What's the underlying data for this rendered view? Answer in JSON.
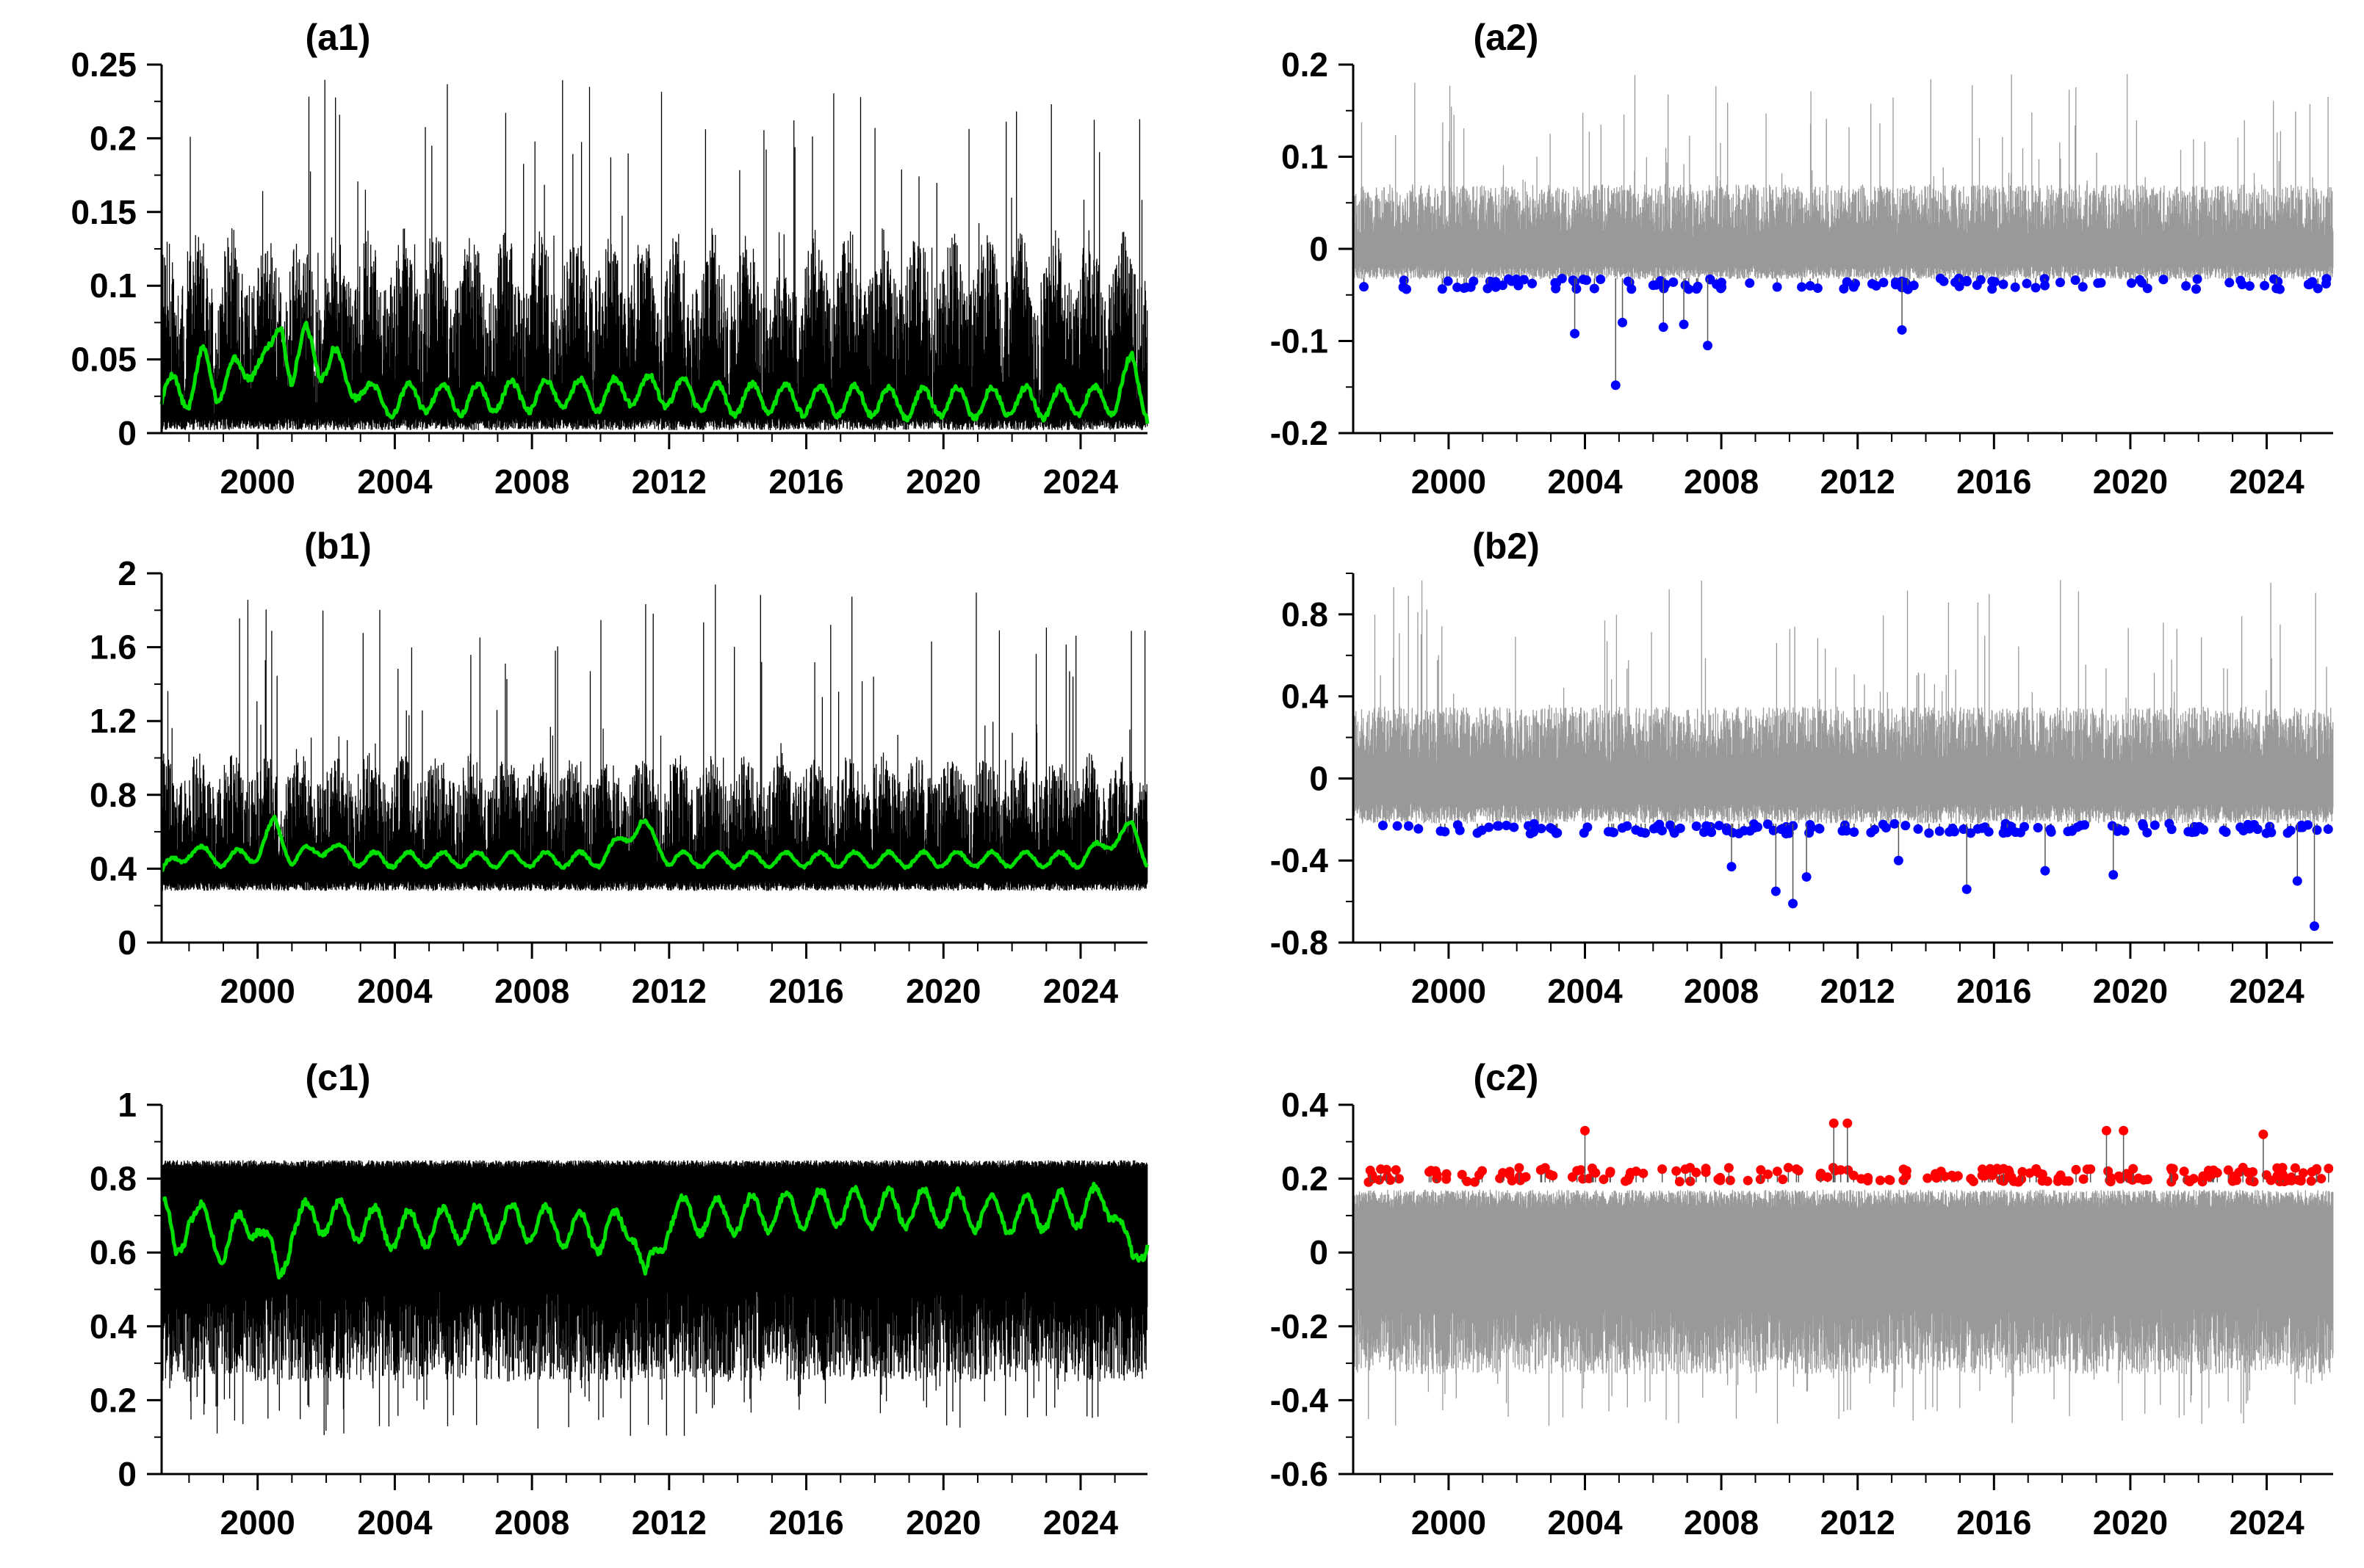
{
  "figure": {
    "background": "#ffffff",
    "colors": {
      "raw": "#000000",
      "smooth": "#00e000",
      "anomaly": "#999999",
      "low_extreme": "#0000ff",
      "high_extreme": "#ff0000"
    }
  },
  "chart_data": [
    {
      "id": "a1",
      "type": "line",
      "title": "(a1)",
      "xlabel": "",
      "ylabel": "",
      "xlim": [
        1997.2,
        2025.95
      ],
      "xticks": [
        2000,
        2004,
        2008,
        2012,
        2016,
        2020,
        2024
      ],
      "xtick_labels": [
        "2000",
        "2004",
        "2008",
        "2012",
        "2016",
        "2020",
        "2024"
      ],
      "ylim": [
        0,
        0.25
      ],
      "yticks": [
        0,
        0.05,
        0.1,
        0.15,
        0.2,
        0.25
      ],
      "ytick_labels": [
        "0",
        "0.05",
        "0.1",
        "0.15",
        "0.2",
        "0.25"
      ],
      "grid": false,
      "legend": "none",
      "series": [
        {
          "kind": "raw",
          "color": "#000000",
          "base": 0.03,
          "low": 0.002,
          "high_typ": 0.12,
          "high_max": 0.24,
          "seasonal_amp": 0.02,
          "seed": 11
        },
        {
          "kind": "smooth",
          "color": "#00e000",
          "x": [
            1997.2,
            1997.6,
            1998.0,
            1998.4,
            1998.8,
            1999.2,
            1999.6,
            2000.0,
            2000.4,
            2000.7,
            2001.0,
            2001.4,
            2001.8,
            2002.2,
            2002.6,
            2003.0,
            2003.5,
            2004,
            2005,
            2006,
            2007,
            2008,
            2009,
            2010,
            2011,
            2012,
            2013,
            2014,
            2015,
            2016,
            2017,
            2018,
            2019,
            2020,
            2021,
            2022,
            2023,
            2024,
            2025,
            2025.5,
            2025.95
          ],
          "y": [
            0.018,
            0.035,
            0.025,
            0.05,
            0.03,
            0.045,
            0.035,
            0.055,
            0.05,
            0.075,
            0.04,
            0.065,
            0.045,
            0.055,
            0.03,
            0.035,
            0.02,
            0.022,
            0.025,
            0.022,
            0.025,
            0.025,
            0.028,
            0.025,
            0.03,
            0.028,
            0.025,
            0.022,
            0.025,
            0.022,
            0.022,
            0.022,
            0.02,
            0.022,
            0.02,
            0.022,
            0.02,
            0.022,
            0.022,
            0.045,
            0.018
          ],
          "seasonal_amp": 0.01
        }
      ]
    },
    {
      "id": "a2",
      "type": "line",
      "title": "(a2)",
      "xlabel": "",
      "ylabel": "",
      "xlim": [
        1997.2,
        2025.95
      ],
      "xticks": [
        2000,
        2004,
        2008,
        2012,
        2016,
        2020,
        2024
      ],
      "xtick_labels": [
        "2000",
        "2004",
        "2008",
        "2012",
        "2016",
        "2020",
        "2024"
      ],
      "ylim": [
        -0.2,
        0.2
      ],
      "yticks": [
        -0.2,
        -0.1,
        0,
        0.1,
        0.2
      ],
      "ytick_labels": [
        "-0.2",
        "-0.1",
        "0",
        "0.1",
        "0.2"
      ],
      "grid": false,
      "legend": "none",
      "series": [
        {
          "kind": "anomaly",
          "color": "#999999",
          "pos_typ": 0.07,
          "pos_max": 0.19,
          "neg_typ": -0.03,
          "seed": 23
        },
        {
          "kind": "extremes",
          "color": "#0000ff",
          "side": "low",
          "threshold": -0.032,
          "count": 120,
          "typ_dev": 0.012,
          "seed": 31,
          "outliers": [
            [
              2003.7,
              -0.092
            ],
            [
              2004.9,
              -0.148
            ],
            [
              2005.1,
              -0.08
            ],
            [
              2006.3,
              -0.085
            ],
            [
              2006.9,
              -0.082
            ],
            [
              2007.6,
              -0.105
            ],
            [
              2013.3,
              -0.088
            ]
          ]
        }
      ]
    },
    {
      "id": "b1",
      "type": "line",
      "title": "(b1)",
      "xlabel": "",
      "ylabel": "",
      "xlim": [
        1997.2,
        2025.95
      ],
      "xticks": [
        2000,
        2004,
        2008,
        2012,
        2016,
        2020,
        2024
      ],
      "xtick_labels": [
        "2000",
        "2004",
        "2008",
        "2012",
        "2016",
        "2020",
        "2024"
      ],
      "ylim": [
        0,
        2
      ],
      "yticks": [
        0,
        0.4,
        0.8,
        1.2,
        1.6,
        2
      ],
      "ytick_labels": [
        "0",
        "0.4",
        "0.8",
        "1.2",
        "1.6",
        "2"
      ],
      "grid": false,
      "legend": "none",
      "series": [
        {
          "kind": "raw",
          "color": "#000000",
          "base": 0.45,
          "low": 0.28,
          "high_typ": 0.95,
          "high_max": 1.95,
          "seasonal_amp": 0.08,
          "seed": 41
        },
        {
          "kind": "smooth",
          "color": "#00e000",
          "x": [
            1997.2,
            1998,
            1999,
            2000,
            2000.5,
            2001,
            2002,
            2003,
            2004,
            2006,
            2008,
            2010,
            2011.2,
            2012,
            2014,
            2016,
            2018,
            2020,
            2022,
            2024,
            2025.5,
            2025.95
          ],
          "y": [
            0.38,
            0.5,
            0.45,
            0.48,
            0.65,
            0.45,
            0.52,
            0.45,
            0.45,
            0.45,
            0.45,
            0.45,
            0.65,
            0.45,
            0.45,
            0.45,
            0.45,
            0.45,
            0.45,
            0.45,
            0.62,
            0.45
          ],
          "seasonal_amp": 0.04
        }
      ]
    },
    {
      "id": "b2",
      "type": "line",
      "title": "(b2)",
      "xlabel": "",
      "ylabel": "",
      "xlim": [
        1997.2,
        2025.95
      ],
      "xticks": [
        2000,
        2004,
        2008,
        2012,
        2016,
        2020,
        2024
      ],
      "xtick_labels": [
        "2000",
        "2004",
        "2008",
        "2012",
        "2016",
        "2020",
        "2024"
      ],
      "ylim": [
        -0.8,
        1.0
      ],
      "yticks": [
        -0.8,
        -0.4,
        0,
        0.4,
        0.8
      ],
      "ytick_labels": [
        "-0.8",
        "-0.4",
        "0",
        "0.4",
        "0.8"
      ],
      "grid": false,
      "legend": "none",
      "series": [
        {
          "kind": "anomaly",
          "color": "#999999",
          "pos_typ": 0.35,
          "pos_max": 0.97,
          "neg_typ": -0.2,
          "seed": 53
        },
        {
          "kind": "extremes",
          "color": "#0000ff",
          "side": "low",
          "threshold": -0.22,
          "count": 150,
          "typ_dev": 0.05,
          "seed": 61,
          "outliers": [
            [
              2008.3,
              -0.43
            ],
            [
              2009.6,
              -0.55
            ],
            [
              2010.1,
              -0.61
            ],
            [
              2010.5,
              -0.48
            ],
            [
              2013.2,
              -0.4
            ],
            [
              2015.2,
              -0.54
            ],
            [
              2017.5,
              -0.45
            ],
            [
              2019.5,
              -0.47
            ],
            [
              2024.9,
              -0.5
            ],
            [
              2025.4,
              -0.72
            ]
          ]
        }
      ]
    },
    {
      "id": "c1",
      "type": "line",
      "title": "(c1)",
      "xlabel": "",
      "ylabel": "",
      "xlim": [
        1997.2,
        2025.95
      ],
      "xticks": [
        2000,
        2004,
        2008,
        2012,
        2016,
        2020,
        2024
      ],
      "xtick_labels": [
        "2000",
        "2004",
        "2008",
        "2012",
        "2016",
        "2020",
        "2024"
      ],
      "ylim": [
        0,
        1
      ],
      "yticks": [
        0,
        0.2,
        0.4,
        0.6,
        0.8,
        1
      ],
      "ytick_labels": [
        "0",
        "0.2",
        "0.4",
        "0.6",
        "0.8",
        "1"
      ],
      "grid": false,
      "legend": "none",
      "series": [
        {
          "kind": "raw_inverted",
          "color": "#000000",
          "top": 0.85,
          "low_typ": 0.25,
          "low_min": 0.1,
          "seed": 71
        },
        {
          "kind": "smooth",
          "color": "#00e000",
          "x": [
            1997.2,
            1997.6,
            1998,
            1999,
            2000,
            2000.6,
            2001,
            2002,
            2004,
            2006,
            2008,
            2010,
            2011,
            2011.3,
            2012,
            2014,
            2016,
            2018,
            2020,
            2022,
            2024,
            2025,
            2025.5,
            2025.95
          ],
          "y": [
            0.74,
            0.58,
            0.72,
            0.62,
            0.7,
            0.52,
            0.68,
            0.7,
            0.66,
            0.68,
            0.68,
            0.65,
            0.68,
            0.5,
            0.7,
            0.7,
            0.72,
            0.72,
            0.72,
            0.7,
            0.72,
            0.74,
            0.55,
            0.66
          ],
          "seasonal_amp": 0.05
        }
      ]
    },
    {
      "id": "c2",
      "type": "line",
      "title": "(c2)",
      "xlabel": "",
      "ylabel": "",
      "xlim": [
        1997.2,
        2025.95
      ],
      "xticks": [
        2000,
        2004,
        2008,
        2012,
        2016,
        2020,
        2024
      ],
      "xtick_labels": [
        "2000",
        "2004",
        "2008",
        "2012",
        "2016",
        "2020",
        "2024"
      ],
      "ylim": [
        -0.6,
        0.4
      ],
      "yticks": [
        -0.6,
        -0.4,
        -0.2,
        0,
        0.2,
        0.4
      ],
      "ytick_labels": [
        "-0.6",
        "-0.4",
        "-0.2",
        "0",
        "0.2",
        "0.4"
      ],
      "grid": false,
      "legend": "none",
      "series": [
        {
          "kind": "anomaly",
          "color": "#999999",
          "pos_typ": 0.17,
          "neg_typ": -0.3,
          "neg_max": -0.47,
          "seed": 83
        },
        {
          "kind": "extremes",
          "color": "#ff0000",
          "side": "high",
          "threshold": 0.19,
          "count": 210,
          "typ_dev": 0.04,
          "seed": 97,
          "outliers": [
            [
              2004.0,
              0.33
            ],
            [
              2011.3,
              0.35
            ],
            [
              2011.7,
              0.35
            ],
            [
              2019.3,
              0.33
            ],
            [
              2019.8,
              0.33
            ],
            [
              2023.9,
              0.32
            ]
          ]
        }
      ]
    }
  ]
}
